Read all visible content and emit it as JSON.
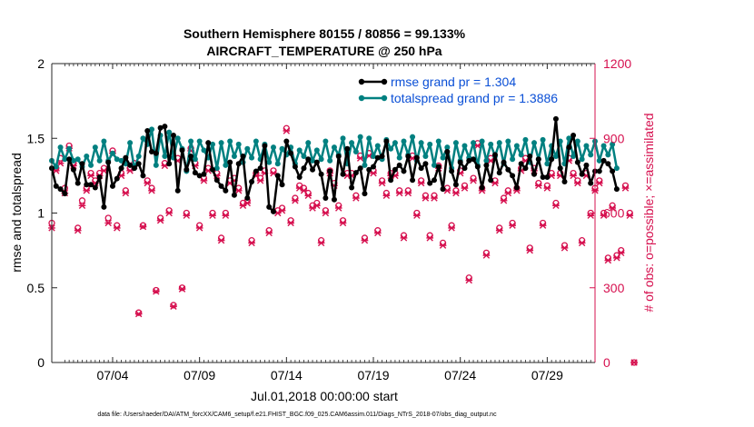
{
  "chart_data": {
    "type": "line",
    "title_line1": "Southern Hemisphere 80155 / 80856 = 99.133%",
    "title_line2": "AIRCRAFT_TEMPERATURE @ 250 hPa",
    "xlabel": "Jul.01,2018 00:00:00 start",
    "ylabel_left": "rmse and totalspread",
    "ylabel_right": "# of obs: o=possible; ×=assimilated",
    "footer": "data file: /Users/raeder/DAI/ATM_forcXX/CAM6_setup/f.e21.FHIST_BGC.f09_025.CAM6assim.011/Diags_NTrS_2018-07/obs_diag_output.nc",
    "x_range": [
      0.5,
      31.75
    ],
    "ylim_left": [
      0,
      2
    ],
    "ylim_right": [
      0,
      1200
    ],
    "left_ticks": [
      {
        "value": 0,
        "label": "0"
      },
      {
        "value": 0.5,
        "label": "0.5"
      },
      {
        "value": 1,
        "label": "1"
      },
      {
        "value": 1.5,
        "label": "1.5"
      },
      {
        "value": 2,
        "label": "2"
      }
    ],
    "right_ticks": [
      {
        "value": 0,
        "label": "0"
      },
      {
        "value": 300,
        "label": "300"
      },
      {
        "value": 600,
        "label": "600"
      },
      {
        "value": 900,
        "label": "900"
      },
      {
        "value": 1200,
        "label": "1200"
      }
    ],
    "x_ticks": [
      {
        "value": 4,
        "label": "07/04"
      },
      {
        "value": 9,
        "label": "07/09"
      },
      {
        "value": 14,
        "label": "07/14"
      },
      {
        "value": 19,
        "label": "07/19"
      },
      {
        "value": 24,
        "label": "07/24"
      },
      {
        "value": 29,
        "label": "07/29"
      }
    ],
    "x_minor_ticks": [
      1.25,
      1.5,
      1.75,
      2,
      2.25,
      2.5,
      2.75,
      3,
      3.25,
      3.5,
      3.75,
      4.25,
      4.5,
      4.75,
      5,
      5.25,
      5.5,
      5.75,
      6,
      6.25,
      6.5,
      6.75,
      7,
      7.25,
      7.5,
      7.75,
      8,
      8.25,
      8.5,
      8.75,
      9.25,
      9.5,
      9.75,
      10,
      10.25,
      10.5,
      10.75,
      11,
      11.25,
      11.5,
      11.75,
      12,
      12.25,
      12.5,
      12.75,
      13,
      13.25,
      13.5,
      13.75,
      14.25,
      14.5,
      14.75,
      15,
      15.25,
      15.5,
      15.75,
      16,
      16.25,
      16.5,
      16.75,
      17,
      17.25,
      17.5,
      17.75,
      18,
      18.25,
      18.5,
      18.75,
      19.25,
      19.5,
      19.75,
      20,
      20.25,
      20.5,
      20.75,
      21,
      21.25,
      21.5,
      21.75,
      22,
      22.25,
      22.5,
      22.75,
      23,
      23.25,
      23.5,
      23.75,
      24.25,
      24.5,
      24.75,
      25,
      25.25,
      25.5,
      25.75,
      26,
      26.25,
      26.5,
      26.75,
      27,
      27.25,
      27.5,
      27.75,
      28,
      28.25,
      28.5,
      28.75,
      29.25,
      29.5,
      29.75,
      30,
      30.25,
      30.5,
      30.75,
      31,
      31.25,
      31.5
    ],
    "start": 0.5,
    "step": 0.25,
    "series": [
      {
        "name": "rmse",
        "legend": "rmse grand pr = 1.304",
        "color": "#000000",
        "axis": "left",
        "values": [
          1.3,
          1.18,
          1.16,
          1.13,
          1.36,
          1.29,
          1.2,
          1.33,
          1.19,
          1.19,
          1.17,
          1.24,
          1.04,
          1.34,
          1.18,
          1.23,
          1.3,
          1.37,
          1.32,
          1.3,
          1.33,
          1.25,
          1.55,
          1.41,
          1.4,
          1.57,
          1.58,
          1.33,
          1.52,
          1.15,
          1.42,
          1.29,
          1.38,
          1.27,
          1.25,
          1.26,
          1.47,
          1.29,
          1.22,
          1.18,
          1.15,
          1.34,
          1.12,
          1.33,
          1.38,
          1.1,
          1.21,
          1.28,
          1.3,
          1.45,
          1.04,
          1.01,
          1.25,
          1.19,
          1.48,
          1.4,
          1.31,
          1.24,
          1.3,
          1.36,
          1.29,
          1.34,
          1.26,
          1.1,
          1.28,
          1.09,
          1.38,
          1.26,
          1.43,
          1.17,
          1.27,
          1.3,
          1.13,
          1.29,
          1.31,
          1.37,
          1.38,
          1.48,
          1.22,
          1.29,
          1.32,
          1.28,
          1.38,
          1.22,
          1.37,
          1.3,
          1.33,
          1.2,
          1.22,
          1.31,
          1.16,
          1.41,
          1.28,
          1.19,
          1.34,
          1.3,
          1.35,
          1.36,
          1.31,
          1.17,
          1.32,
          1.22,
          1.39,
          1.27,
          1.34,
          1.29,
          1.25,
          1.17,
          1.33,
          1.3,
          1.38,
          1.26,
          1.36,
          1.24,
          1.24,
          1.36,
          1.63,
          1.3,
          1.21,
          1.44,
          1.52,
          1.34,
          1.26,
          1.32,
          1.2,
          1.28,
          1.28,
          1.35,
          1.33,
          1.28,
          1.16
        ]
      },
      {
        "name": "totalspread",
        "legend": "totalspread grand pr = 1.3886",
        "color": "#008080",
        "axis": "left",
        "values": [
          1.35,
          1.31,
          1.44,
          1.36,
          1.43,
          1.35,
          1.36,
          1.31,
          1.38,
          1.32,
          1.44,
          1.35,
          1.48,
          1.35,
          1.4,
          1.36,
          1.35,
          1.33,
          1.47,
          1.3,
          1.38,
          1.5,
          1.46,
          1.56,
          1.32,
          1.52,
          1.38,
          1.54,
          1.37,
          1.5,
          1.43,
          1.28,
          1.48,
          1.36,
          1.48,
          1.42,
          1.37,
          1.46,
          1.3,
          1.47,
          1.32,
          1.48,
          1.38,
          1.46,
          1.34,
          1.43,
          1.37,
          1.48,
          1.36,
          1.46,
          1.34,
          1.44,
          1.33,
          1.43,
          1.39,
          1.44,
          1.33,
          1.42,
          1.38,
          1.47,
          1.35,
          1.42,
          1.36,
          1.48,
          1.35,
          1.44,
          1.39,
          1.5,
          1.33,
          1.47,
          1.41,
          1.51,
          1.32,
          1.5,
          1.38,
          1.45,
          1.36,
          1.49,
          1.43,
          1.47,
          1.37,
          1.48,
          1.39,
          1.51,
          1.35,
          1.47,
          1.38,
          1.46,
          1.32,
          1.48,
          1.37,
          1.44,
          1.3,
          1.47,
          1.35,
          1.45,
          1.37,
          1.47,
          1.32,
          1.48,
          1.35,
          1.46,
          1.38,
          1.47,
          1.33,
          1.48,
          1.36,
          1.45,
          1.39,
          1.49,
          1.34,
          1.47,
          1.36,
          1.49,
          1.33,
          1.45,
          1.38,
          1.48,
          1.33,
          1.5,
          1.38,
          1.48,
          1.36,
          1.45,
          1.39,
          1.48,
          1.35,
          1.45,
          1.39,
          1.46,
          1.3
        ]
      }
    ],
    "obs": {
      "color": "#d6104f",
      "axis": "right",
      "possible": [
        560,
        780,
        820,
        700,
        870,
        800,
        540,
        650,
        700,
        760,
        730,
        760,
        780,
        580,
        850,
        550,
        760,
        690,
        780,
        800,
        200,
        550,
        730,
        700,
        290,
        580,
        800,
        610,
        230,
        820,
        300,
        600,
        860,
        800,
        550,
        740,
        780,
        600,
        760,
        500,
        600,
        730,
        740,
        700,
        640,
        650,
        490,
        760,
        740,
        770,
        530,
        770,
        610,
        620,
        940,
        570,
        660,
        710,
        700,
        680,
        630,
        640,
        490,
        610,
        770,
        720,
        630,
        570,
        760,
        760,
        670,
        830,
        500,
        840,
        770,
        530,
        730,
        680,
        760,
        760,
        690,
        510,
        690,
        830,
        600,
        730,
        670,
        510,
        670,
        790,
        480,
        700,
        550,
        690,
        770,
        710,
        340,
        740,
        880,
        700,
        440,
        820,
        730,
        540,
        660,
        690,
        560,
        700,
        780,
        820,
        460,
        780,
        720,
        560,
        710,
        760,
        640,
        760,
        470,
        820,
        760,
        730,
        490,
        760,
        600,
        700,
        730,
        600,
        420,
        630,
        430,
        450,
        710,
        600,
        0
      ],
      "assimilated": [
        540,
        770,
        800,
        680,
        860,
        790,
        530,
        630,
        690,
        750,
        720,
        750,
        770,
        560,
        840,
        540,
        750,
        680,
        770,
        790,
        195,
        545,
        720,
        690,
        285,
        570,
        790,
        600,
        225,
        810,
        295,
        590,
        850,
        790,
        540,
        730,
        770,
        590,
        750,
        490,
        590,
        720,
        730,
        690,
        630,
        640,
        480,
        750,
        730,
        760,
        520,
        760,
        600,
        610,
        930,
        560,
        650,
        700,
        690,
        670,
        620,
        630,
        480,
        600,
        760,
        710,
        620,
        560,
        750,
        750,
        660,
        820,
        490,
        830,
        760,
        520,
        720,
        670,
        750,
        750,
        680,
        500,
        680,
        820,
        590,
        720,
        660,
        500,
        660,
        780,
        470,
        690,
        540,
        680,
        760,
        700,
        330,
        730,
        870,
        690,
        430,
        810,
        720,
        530,
        650,
        680,
        550,
        690,
        770,
        810,
        450,
        770,
        710,
        550,
        700,
        750,
        630,
        750,
        460,
        810,
        750,
        720,
        480,
        750,
        590,
        690,
        720,
        590,
        410,
        620,
        420,
        440,
        700,
        590,
        0
      ]
    }
  }
}
